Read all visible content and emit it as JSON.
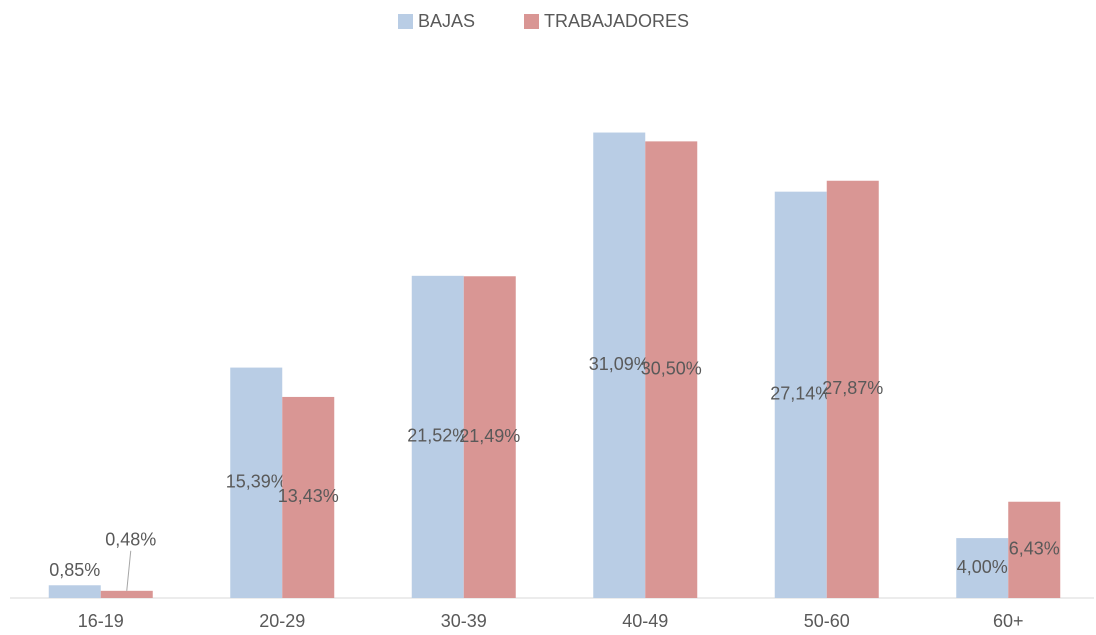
{
  "chart_data": {
    "type": "bar",
    "categories": [
      "16-19",
      "20-29",
      "30-39",
      "40-49",
      "50-60",
      "60+"
    ],
    "series": [
      {
        "name": "BAJAS",
        "color": "#b9cde5",
        "values": [
          0.85,
          15.39,
          21.52,
          31.09,
          27.14,
          4.0
        ],
        "value_labels": [
          "0,85%",
          "15,39%",
          "21,52%",
          "31,09%",
          "27,14%",
          "4,00%"
        ]
      },
      {
        "name": "TRABAJADORES",
        "color": "#d99694",
        "values": [
          0.48,
          13.43,
          21.49,
          30.5,
          27.87,
          6.43
        ],
        "value_labels": [
          "0,48%",
          "13,43%",
          "21,49%",
          "30,50%",
          "27,87%",
          "6,43%"
        ]
      }
    ],
    "ylim": [
      0,
      35
    ],
    "legend": "top"
  }
}
